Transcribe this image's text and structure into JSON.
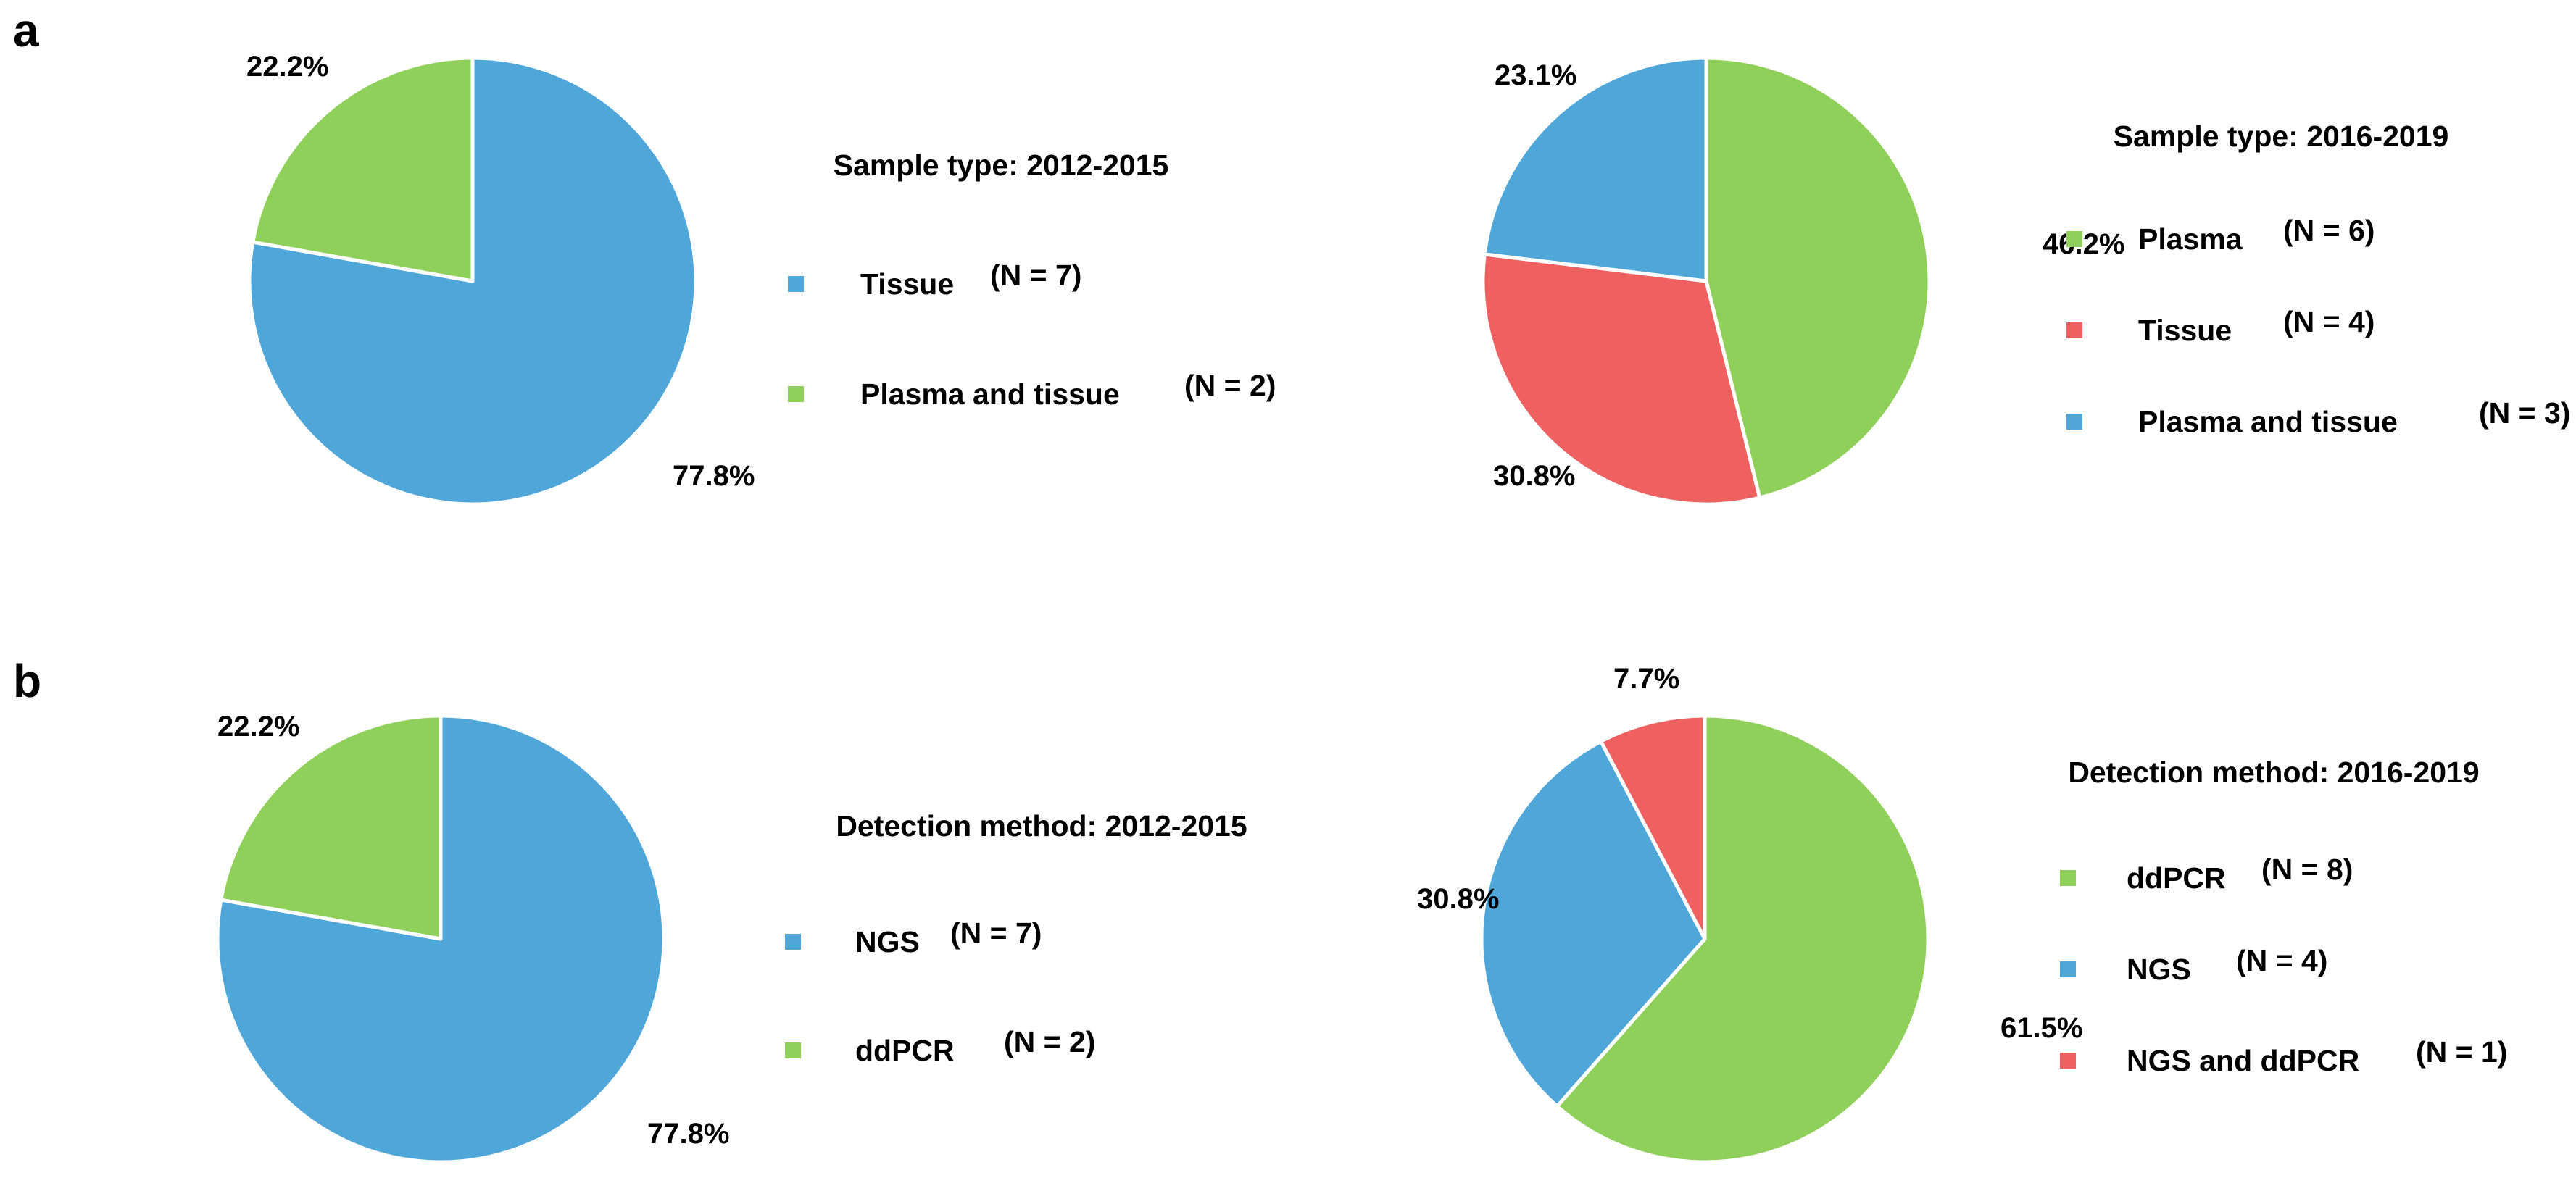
{
  "panels": [
    {
      "label": "a"
    },
    {
      "label": "b"
    }
  ],
  "chart_data": [
    {
      "type": "pie",
      "title": "Sample type: 2012-2015",
      "slices": [
        {
          "name": "Tissue",
          "n_label": "(N = 7)",
          "value": 77.8,
          "pct_label": "77.8%",
          "color": "#4EA6D9"
        },
        {
          "name": "Plasma and tissue",
          "n_label": "(N = 2)",
          "value": 22.2,
          "pct_label": "22.2%",
          "color": "#8FD05A"
        }
      ]
    },
    {
      "type": "pie",
      "title": "Sample type: 2016-2019",
      "slices": [
        {
          "name": "Plasma",
          "n_label": "(N = 6)",
          "value": 46.2,
          "pct_label": "46.2%",
          "color": "#8FD05A"
        },
        {
          "name": "Tissue",
          "n_label": "(N = 4)",
          "value": 30.8,
          "pct_label": "30.8%",
          "color": "#EE6160"
        },
        {
          "name": "Plasma and tissue",
          "n_label": "(N = 3)",
          "value": 23.1,
          "pct_label": "23.1%",
          "color": "#4EA6D9"
        }
      ]
    },
    {
      "type": "pie",
      "title": "Detection method: 2012-2015",
      "slices": [
        {
          "name": "NGS",
          "n_label": "(N = 7)",
          "value": 77.8,
          "pct_label": "77.8%",
          "color": "#4EA6D9"
        },
        {
          "name": "ddPCR",
          "n_label": "(N = 2)",
          "value": 22.2,
          "pct_label": "22.2%",
          "color": "#8FD05A"
        }
      ]
    },
    {
      "type": "pie",
      "title": "Detection method: 2016-2019",
      "slices": [
        {
          "name": "ddPCR",
          "n_label": "(N = 8)",
          "value": 61.5,
          "pct_label": "61.5%",
          "color": "#8FD05A"
        },
        {
          "name": "NGS",
          "n_label": "(N = 4)",
          "value": 30.8,
          "pct_label": "30.8%",
          "color": "#4EA6D9"
        },
        {
          "name": "NGS and ddPCR",
          "n_label": "(N = 1)",
          "value": 7.7,
          "pct_label": "7.7%",
          "color": "#EE6160"
        }
      ]
    }
  ]
}
